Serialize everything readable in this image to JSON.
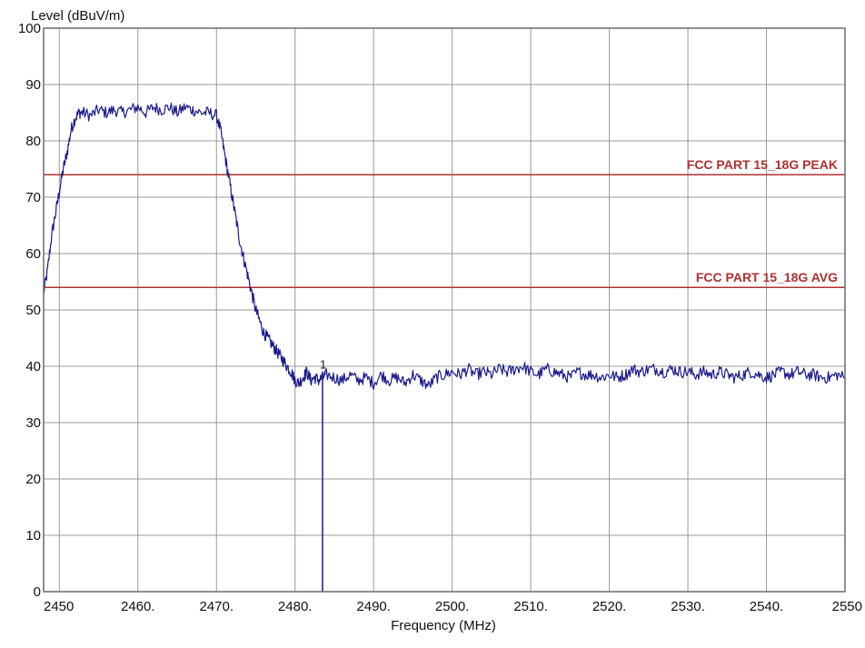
{
  "chart_data": {
    "type": "line",
    "ylabel": "Level (dBuV/m)",
    "xlabel": "Frequency (MHz)",
    "xlim": [
      2448,
      2550
    ],
    "ylim": [
      0,
      100
    ],
    "grid": true,
    "x_ticks": [
      2450,
      2460,
      2470,
      2480,
      2490,
      2500,
      2510,
      2520,
      2530,
      2540,
      2550
    ],
    "x_tick_labels": [
      "2450",
      "2460.",
      "2470.",
      "2480.",
      "2490.",
      "2500.",
      "2510.",
      "2520.",
      "2530.",
      "2540.",
      "2550"
    ],
    "y_ticks": [
      0,
      10,
      20,
      30,
      40,
      50,
      60,
      70,
      80,
      90,
      100
    ],
    "y_tick_labels": [
      "0",
      "10",
      "20",
      "30",
      "40",
      "50",
      "60",
      "70",
      "80",
      "90",
      "100"
    ],
    "limit_lines": [
      {
        "name": "FCC PART 15_18G PEAK",
        "value": 74,
        "color": "#b03030"
      },
      {
        "name": "FCC PART 15_18G AVG",
        "value": 54,
        "color": "#b03030"
      }
    ],
    "marker": {
      "label": "1",
      "x": 2483.5,
      "y": 38
    },
    "series": [
      {
        "color": "#1a1a8c",
        "x": [
          2448,
          2448.5,
          2449,
          2449.5,
          2450,
          2450.5,
          2451,
          2451.5,
          2452,
          2452.5,
          2453,
          2454,
          2455,
          2456,
          2457,
          2458,
          2459,
          2460,
          2461,
          2462,
          2463,
          2464,
          2465,
          2466,
          2467,
          2468,
          2469,
          2470,
          2470.5,
          2471,
          2471.5,
          2472,
          2472.5,
          2473,
          2473.5,
          2474,
          2474.5,
          2475,
          2475.5,
          2476,
          2476.5,
          2477,
          2477.5,
          2478,
          2478.5,
          2479,
          2479.5,
          2480,
          2480.5,
          2481,
          2481.5,
          2482,
          2482.5,
          2483,
          2483.5,
          2484,
          2485,
          2486,
          2487,
          2488,
          2489,
          2490,
          2491,
          2492,
          2493,
          2494,
          2495,
          2496,
          2497,
          2498,
          2499,
          2500,
          2501,
          2502,
          2503,
          2504,
          2505,
          2506,
          2507,
          2508,
          2509,
          2510,
          2511,
          2512,
          2513,
          2514,
          2515,
          2516,
          2517,
          2518,
          2519,
          2520,
          2521,
          2522,
          2523,
          2524,
          2525,
          2526,
          2527,
          2528,
          2529,
          2530,
          2531,
          2532,
          2533,
          2534,
          2535,
          2536,
          2537,
          2538,
          2539,
          2540,
          2541,
          2542,
          2543,
          2544,
          2545,
          2546,
          2547,
          2548,
          2549,
          2550
        ],
        "values": [
          53,
          57,
          63,
          67,
          71,
          75,
          78,
          82,
          84,
          85,
          85,
          84.5,
          85.5,
          85,
          85.5,
          85,
          85.5,
          86,
          85,
          86,
          85.5,
          86,
          85,
          86,
          85.5,
          85,
          85,
          84.5,
          82,
          78,
          74,
          70,
          66,
          62,
          59,
          56,
          53,
          50,
          48,
          46,
          45,
          44,
          43,
          42,
          41,
          40,
          39,
          37.5,
          37,
          38,
          39,
          37.5,
          38,
          37.5,
          38,
          38.5,
          38,
          37.5,
          38.5,
          37.5,
          38,
          37,
          38.5,
          37.5,
          38,
          37,
          38.5,
          37.5,
          36.5,
          38,
          38.5,
          39,
          38.5,
          39.5,
          38.5,
          39,
          38.5,
          39.5,
          39,
          39.5,
          40,
          39,
          38.5,
          39.5,
          39,
          38.5,
          38,
          39,
          38.5,
          38.5,
          38,
          38.5,
          38,
          38.5,
          39.5,
          39,
          39.5,
          39.5,
          39,
          39.5,
          39,
          39,
          38.5,
          39,
          38.5,
          39,
          38.5,
          38,
          38.5,
          39,
          38.5,
          38,
          38.5,
          39,
          38.5,
          39,
          38.5,
          38.5,
          38,
          38,
          38.5,
          38
        ]
      }
    ]
  }
}
